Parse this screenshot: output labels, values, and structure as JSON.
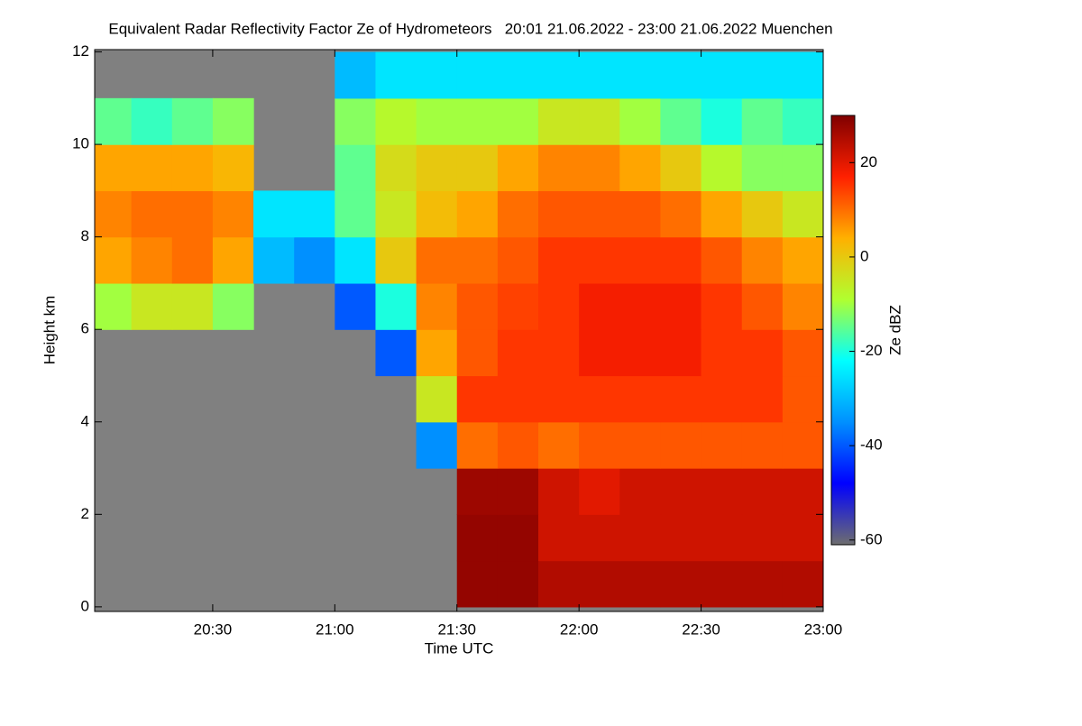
{
  "chart_data": {
    "type": "heatmap",
    "title": "Equivalent Radar Reflectivity Factor Ze of Hydrometeors   20:01 21.06.2022 - 23:00 21.06.2022 Muenchen",
    "x_label": "Time UTC",
    "y_label": "Height km",
    "colorbar_label": "Ze dBZ",
    "xlim": [
      "20:01",
      "23:00"
    ],
    "xticks": [
      "20:30",
      "21:00",
      "21:30",
      "22:00",
      "22:30",
      "23:00"
    ],
    "ylim": [
      -0.1,
      12.05
    ],
    "yticks": [
      0,
      2,
      4,
      6,
      8,
      10,
      12
    ],
    "clim": [
      -61,
      30
    ],
    "cticks": [
      -60,
      -40,
      -20,
      0,
      20
    ],
    "colormap": [
      "#6e6e6e",
      "#0000ff",
      "#0090ff",
      "#00ffff",
      "#b0ff30",
      "#ffb000",
      "#ff2000",
      "#800000"
    ],
    "background": "#808080",
    "x": [
      "20:05",
      "20:15",
      "20:25",
      "20:35",
      "20:45",
      "20:55",
      "21:05",
      "21:15",
      "21:25",
      "21:35",
      "21:45",
      "21:55",
      "22:05",
      "22:15",
      "22:25",
      "22:35",
      "22:45",
      "22:55"
    ],
    "y": [
      0.5,
      1.5,
      2.5,
      3.5,
      4.5,
      5.5,
      6.5,
      7.5,
      8.5,
      9.5,
      10.5,
      11.5
    ],
    "z": [
      [
        null,
        null,
        null,
        null,
        null,
        null,
        null,
        null,
        null,
        28,
        28,
        25,
        25,
        25,
        25,
        25,
        25,
        25
      ],
      [
        null,
        null,
        null,
        null,
        null,
        null,
        null,
        null,
        null,
        28,
        28,
        22,
        22,
        22,
        22,
        22,
        22,
        22
      ],
      [
        null,
        null,
        null,
        null,
        null,
        null,
        null,
        null,
        null,
        27,
        27,
        22,
        20,
        22,
        22,
        22,
        22,
        22
      ],
      [
        null,
        null,
        null,
        null,
        null,
        null,
        null,
        null,
        -35,
        10,
        12,
        10,
        12,
        12,
        12,
        12,
        12,
        12
      ],
      [
        null,
        null,
        null,
        null,
        null,
        null,
        null,
        null,
        -5,
        15,
        15,
        15,
        15,
        15,
        15,
        15,
        15,
        12
      ],
      [
        null,
        null,
        null,
        null,
        null,
        null,
        null,
        -40,
        5,
        12,
        15,
        15,
        18,
        18,
        18,
        15,
        15,
        12
      ],
      [
        -10,
        -5,
        -5,
        -12,
        null,
        null,
        -40,
        -20,
        8,
        12,
        14,
        15,
        18,
        18,
        18,
        15,
        12,
        8
      ],
      [
        5,
        8,
        10,
        5,
        -30,
        -35,
        -25,
        0,
        10,
        10,
        12,
        15,
        15,
        15,
        15,
        12,
        8,
        5
      ],
      [
        8,
        10,
        10,
        8,
        -25,
        -25,
        -15,
        -5,
        2,
        5,
        10,
        12,
        12,
        12,
        10,
        5,
        0,
        -5
      ],
      [
        5,
        5,
        5,
        3,
        null,
        null,
        -15,
        -3,
        0,
        0,
        5,
        8,
        8,
        5,
        0,
        -8,
        -12,
        -12
      ],
      [
        -15,
        -18,
        -15,
        -12,
        null,
        null,
        -12,
        -8,
        -10,
        -10,
        -10,
        -5,
        -5,
        -10,
        -15,
        -20,
        -15,
        -18
      ],
      [
        null,
        null,
        null,
        null,
        null,
        null,
        -30,
        -25,
        -25,
        -25,
        -25,
        -25,
        -25,
        -25,
        -25,
        -25,
        -25,
        -25
      ]
    ]
  }
}
